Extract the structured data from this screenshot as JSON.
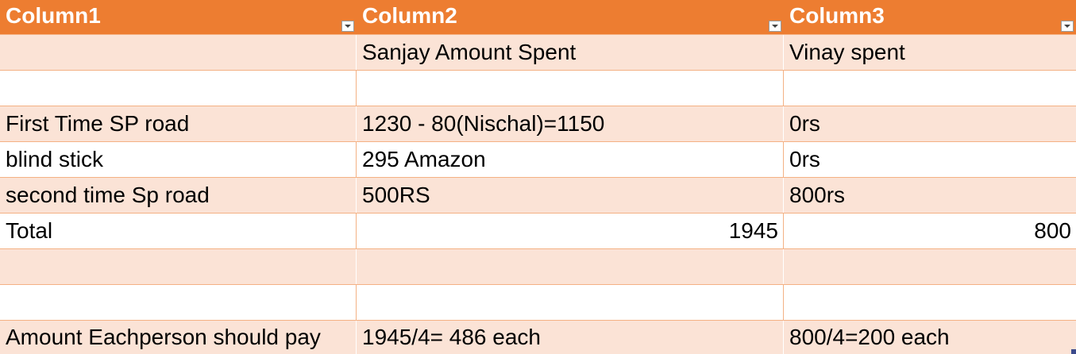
{
  "header": {
    "col1": "Column1",
    "col2": "Column2",
    "col3": "Column3"
  },
  "rows": [
    {
      "c1": "",
      "c2": "Sanjay Amount  Spent",
      "c3": "Vinay spent"
    },
    {
      "c1": "",
      "c2": "",
      "c3": ""
    },
    {
      "c1": "First Time SP road",
      "c2": "1230 - 80(Nischal)=1150",
      "c3": "0rs"
    },
    {
      "c1": "blind stick",
      "c2": "295 Amazon",
      "c3": "0rs"
    },
    {
      "c1": "second time Sp road",
      "c2": "500RS",
      "c3": "800rs"
    },
    {
      "c1": "Total",
      "c2": "1945",
      "c3": "800"
    },
    {
      "c1": "",
      "c2": "",
      "c3": ""
    },
    {
      "c1": "",
      "c2": "",
      "c3": ""
    },
    {
      "c1": "Amount Eachperson should pay",
      "c2": "1945/4=  486 each",
      "c3": "800/4=200 each"
    }
  ],
  "icons": {
    "filter": "filter-dropdown-icon"
  },
  "colors": {
    "header_bg": "#ed7d31",
    "band_bg": "#fbe3d6",
    "border": "#f4b184"
  }
}
